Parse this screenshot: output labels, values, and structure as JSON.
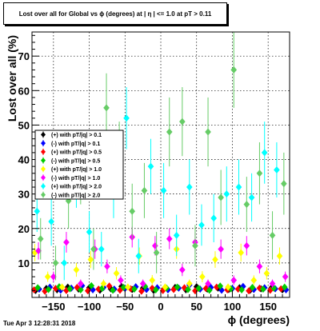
{
  "chart_data": {
    "type": "scatter",
    "title": "Lost over all for Global vs ϕ (degrees) at | η | <= 1.0 at pT > 0.11",
    "xlabel": "ϕ (degrees)",
    "ylabel": "Lost over all (%)",
    "xlim": [
      -180,
      180
    ],
    "ylim": [
      0,
      77
    ],
    "x_ticks": [
      -150,
      -100,
      -50,
      0,
      50,
      100,
      150
    ],
    "y_ticks": [
      10,
      20,
      30,
      40,
      50,
      60,
      70
    ],
    "x_tick_labels": [
      "−150",
      "−100",
      "−50",
      "0",
      "50",
      "100",
      "150"
    ],
    "y_tick_labels": [
      "10",
      "20",
      "30",
      "40",
      "50",
      "60",
      "70"
    ],
    "grid": true,
    "legend_position": "center-left",
    "series": [
      {
        "name": "(+) with pT/|q| > 0.1",
        "color": "#000000",
        "marker": "diamond",
        "x": [
          -175,
          -160,
          -145,
          -130,
          -115,
          -100,
          -85,
          -70,
          -55,
          -40,
          -25,
          -10,
          5,
          20,
          35,
          50,
          65,
          80,
          95,
          110,
          125,
          140,
          155,
          170
        ],
        "y": [
          2.0,
          2.6,
          2.2,
          3.0,
          2.4,
          2.8,
          2.1,
          2.5,
          3.2,
          2.3,
          2.7,
          2.0,
          2.6,
          2.9,
          2.2,
          3.1,
          2.4,
          2.7,
          2.3,
          2.8,
          2.1,
          2.5,
          2.9,
          2.2
        ],
        "err": [
          0.5,
          0.6,
          0.5,
          0.7,
          0.5,
          0.6,
          0.5,
          0.6,
          0.7,
          0.5,
          0.6,
          0.5,
          0.6,
          0.6,
          0.5,
          0.7,
          0.5,
          0.6,
          0.5,
          0.6,
          0.5,
          0.6,
          0.6,
          0.5
        ]
      },
      {
        "name": "(-) with pT/|q| > 0.1",
        "color": "#0000ff",
        "marker": "diamond",
        "x": [
          -170,
          -155,
          -140,
          -125,
          -110,
          -95,
          -80,
          -65,
          -50,
          -35,
          -20,
          -5,
          10,
          25,
          40,
          55,
          70,
          85,
          100,
          115,
          130,
          145,
          160,
          175
        ],
        "y": [
          2.4,
          3.0,
          2.1,
          2.7,
          3.4,
          2.2,
          2.9,
          2.4,
          2.6,
          3.1,
          2.3,
          2.8,
          2.2,
          2.7,
          3.6,
          2.4,
          2.9,
          2.1,
          2.6,
          3.2,
          2.3,
          2.8,
          2.5,
          2.2
        ],
        "err": [
          0.6,
          0.7,
          0.5,
          0.6,
          0.8,
          0.5,
          0.7,
          0.6,
          0.6,
          0.7,
          0.5,
          0.6,
          0.5,
          0.6,
          0.8,
          0.6,
          0.7,
          0.5,
          0.6,
          0.7,
          0.5,
          0.6,
          0.6,
          0.5
        ]
      },
      {
        "name": "(+) with pT/|q| > 0.5",
        "color": "#ff0000",
        "marker": "diamond",
        "x": [
          -177,
          -162,
          -147,
          -132,
          -117,
          -102,
          -87,
          -72,
          -57,
          -42,
          -27,
          -12,
          3,
          18,
          33,
          48,
          63,
          78,
          93,
          108,
          123,
          138,
          153,
          168
        ],
        "y": [
          2.2,
          1.8,
          2.6,
          2.0,
          2.9,
          1.9,
          2.4,
          3.3,
          2.1,
          2.5,
          1.8,
          2.7,
          2.0,
          2.3,
          2.8,
          1.9,
          2.6,
          3.0,
          2.2,
          2.4,
          1.9,
          2.7,
          2.1,
          2.5
        ],
        "err": [
          0.6,
          0.5,
          0.6,
          0.5,
          0.7,
          0.5,
          0.6,
          0.7,
          0.5,
          0.6,
          0.5,
          0.6,
          0.5,
          0.6,
          0.7,
          0.5,
          0.6,
          0.7,
          0.5,
          0.6,
          0.5,
          0.6,
          0.5,
          0.6
        ]
      },
      {
        "name": "(-) with pT/|q| > 0.5",
        "color": "#00cc00",
        "marker": "diamond",
        "x": [
          -172,
          -157,
          -142,
          -127,
          -112,
          -97,
          -82,
          -67,
          -52,
          -37,
          -22,
          -7,
          8,
          23,
          38,
          53,
          68,
          83,
          98,
          113,
          128,
          143,
          158,
          173
        ],
        "y": [
          2.8,
          2.3,
          3.1,
          2.5,
          2.2,
          3.4,
          2.6,
          2.1,
          2.9,
          2.4,
          3.2,
          2.2,
          2.7,
          3.0,
          2.3,
          2.6,
          2.1,
          3.3,
          2.5,
          2.2,
          2.9,
          2.4,
          2.7,
          3.0
        ],
        "err": [
          0.6,
          0.5,
          0.7,
          0.6,
          0.5,
          0.7,
          0.6,
          0.5,
          0.7,
          0.6,
          0.7,
          0.5,
          0.6,
          0.7,
          0.5,
          0.6,
          0.5,
          0.7,
          0.6,
          0.5,
          0.7,
          0.6,
          0.6,
          0.7
        ]
      },
      {
        "name": "(+) with pT/|q| > 1.0",
        "color": "#ffff00",
        "marker": "diamond",
        "x": [
          -176,
          -158,
          -138,
          -118,
          -98,
          -80,
          -62,
          -46,
          -30,
          -12,
          6,
          22,
          40,
          58,
          76,
          94,
          112,
          130,
          148,
          166
        ],
        "y": [
          13,
          6,
          3,
          8,
          11,
          4,
          7,
          3,
          12,
          5,
          3,
          14,
          4,
          6,
          11,
          3,
          13,
          5,
          7,
          12
        ],
        "err": [
          2.5,
          1.5,
          1.0,
          2.0,
          2.5,
          1.2,
          1.8,
          1.0,
          2.5,
          1.5,
          1.0,
          2.8,
          1.2,
          1.6,
          2.4,
          1.0,
          2.6,
          1.4,
          1.8,
          2.5
        ]
      },
      {
        "name": "(-) with pT/|q| > 1.0",
        "color": "#ff00ff",
        "marker": "diamond",
        "x": [
          -171,
          -150,
          -132,
          -112,
          -92,
          -75,
          -56,
          -40,
          -25,
          -8,
          12,
          30,
          48,
          66,
          84,
          102,
          120,
          138,
          156,
          174
        ],
        "y": [
          13.5,
          6,
          16,
          4,
          14,
          9,
          5,
          17.5,
          4,
          15,
          17,
          8,
          16,
          4,
          14,
          5,
          15,
          9,
          4,
          6
        ],
        "err": [
          2.5,
          1.5,
          3.0,
          1.2,
          2.8,
          2.0,
          1.4,
          3.0,
          1.2,
          2.8,
          3.0,
          1.8,
          3.0,
          1.2,
          2.8,
          1.4,
          2.8,
          2.0,
          1.2,
          1.5
        ]
      },
      {
        "name": "(+) with pT/|q| > 2.0",
        "color": "#00ffff",
        "marker": "diamond",
        "x": [
          -173,
          -153,
          -135,
          -118,
          -100,
          -83,
          -66,
          -48,
          -31,
          -14,
          4,
          22,
          40,
          57,
          74,
          92,
          109,
          127,
          145,
          162
        ],
        "y": [
          25,
          22,
          10,
          34,
          19,
          14,
          31,
          52,
          12,
          38,
          31,
          18,
          32,
          21,
          23,
          30,
          32,
          29,
          42,
          37
        ],
        "err": [
          6,
          7,
          5,
          8,
          6,
          5,
          8,
          9,
          5,
          8,
          8,
          6,
          8,
          6,
          7,
          8,
          8,
          7,
          9,
          8
        ]
      },
      {
        "name": "(-) with pT/|q| > 2.0",
        "color": "#66cc66",
        "marker": "diamond",
        "x": [
          -168,
          -147,
          -129,
          -112,
          -94,
          -76,
          -58,
          -40,
          -23,
          -6,
          12,
          30,
          48,
          66,
          84,
          102,
          120,
          138,
          156,
          172
        ],
        "y": [
          17,
          10,
          28,
          36,
          14,
          55,
          42,
          25,
          31,
          13,
          48,
          51,
          15,
          48,
          29,
          66,
          27,
          36,
          18,
          33
        ],
        "err": [
          6,
          5,
          8,
          9,
          6,
          10,
          9,
          8,
          8,
          6,
          10,
          10,
          6,
          10,
          8,
          11,
          8,
          9,
          7,
          9
        ]
      }
    ]
  },
  "timestamp": "Tue Apr  3 12:28:31 2018"
}
